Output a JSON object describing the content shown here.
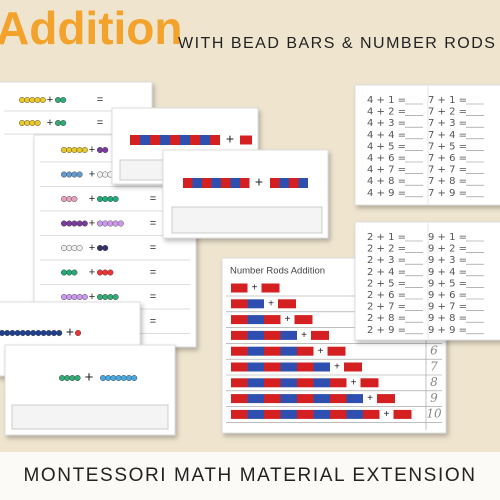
{
  "header": {
    "title": "Addition",
    "subtitle": "WITH BEAD BARS & NUMBER RODS"
  },
  "symbols": {
    "plus": "+",
    "equals": "="
  },
  "worksheets": [
    {
      "columns": [
        [
          "4 + 1 =",
          "4 + 2 =",
          "4 + 3 =",
          "4 + 4 =",
          "4 + 5 =",
          "4 + 6 =",
          "4 + 7 =",
          "4 + 8 =",
          "4 + 9 ="
        ],
        [
          "7 + 1 =",
          "7 + 2 =",
          "7 + 3 =",
          "7 + 4 =",
          "7 + 5 =",
          "7 + 6 =",
          "7 + 7 =",
          "7 + 8 =",
          "7 + 9 ="
        ]
      ]
    },
    {
      "columns": [
        [
          "2 + 1 =",
          "2 + 2 =",
          "2 + 3 =",
          "2 + 4 =",
          "2 + 5 =",
          "2 + 6 =",
          "2 + 7 =",
          "2 + 8 =",
          "2 + 9 ="
        ],
        [
          "9 + 1 =",
          "9 + 2 =",
          "9 + 3 =",
          "9 + 4 =",
          "9 + 5 =",
          "9 + 6 =",
          "9 + 7 =",
          "9 + 8 =",
          "9 + 9 ="
        ]
      ]
    }
  ],
  "number_rods_sheet": {
    "title": "Number Rods Addition",
    "answers": [
      "6",
      "7",
      "8",
      "9",
      "10"
    ]
  },
  "footer": {
    "text": "MONTESSORI MATH MATERIAL EXTENSION"
  }
}
